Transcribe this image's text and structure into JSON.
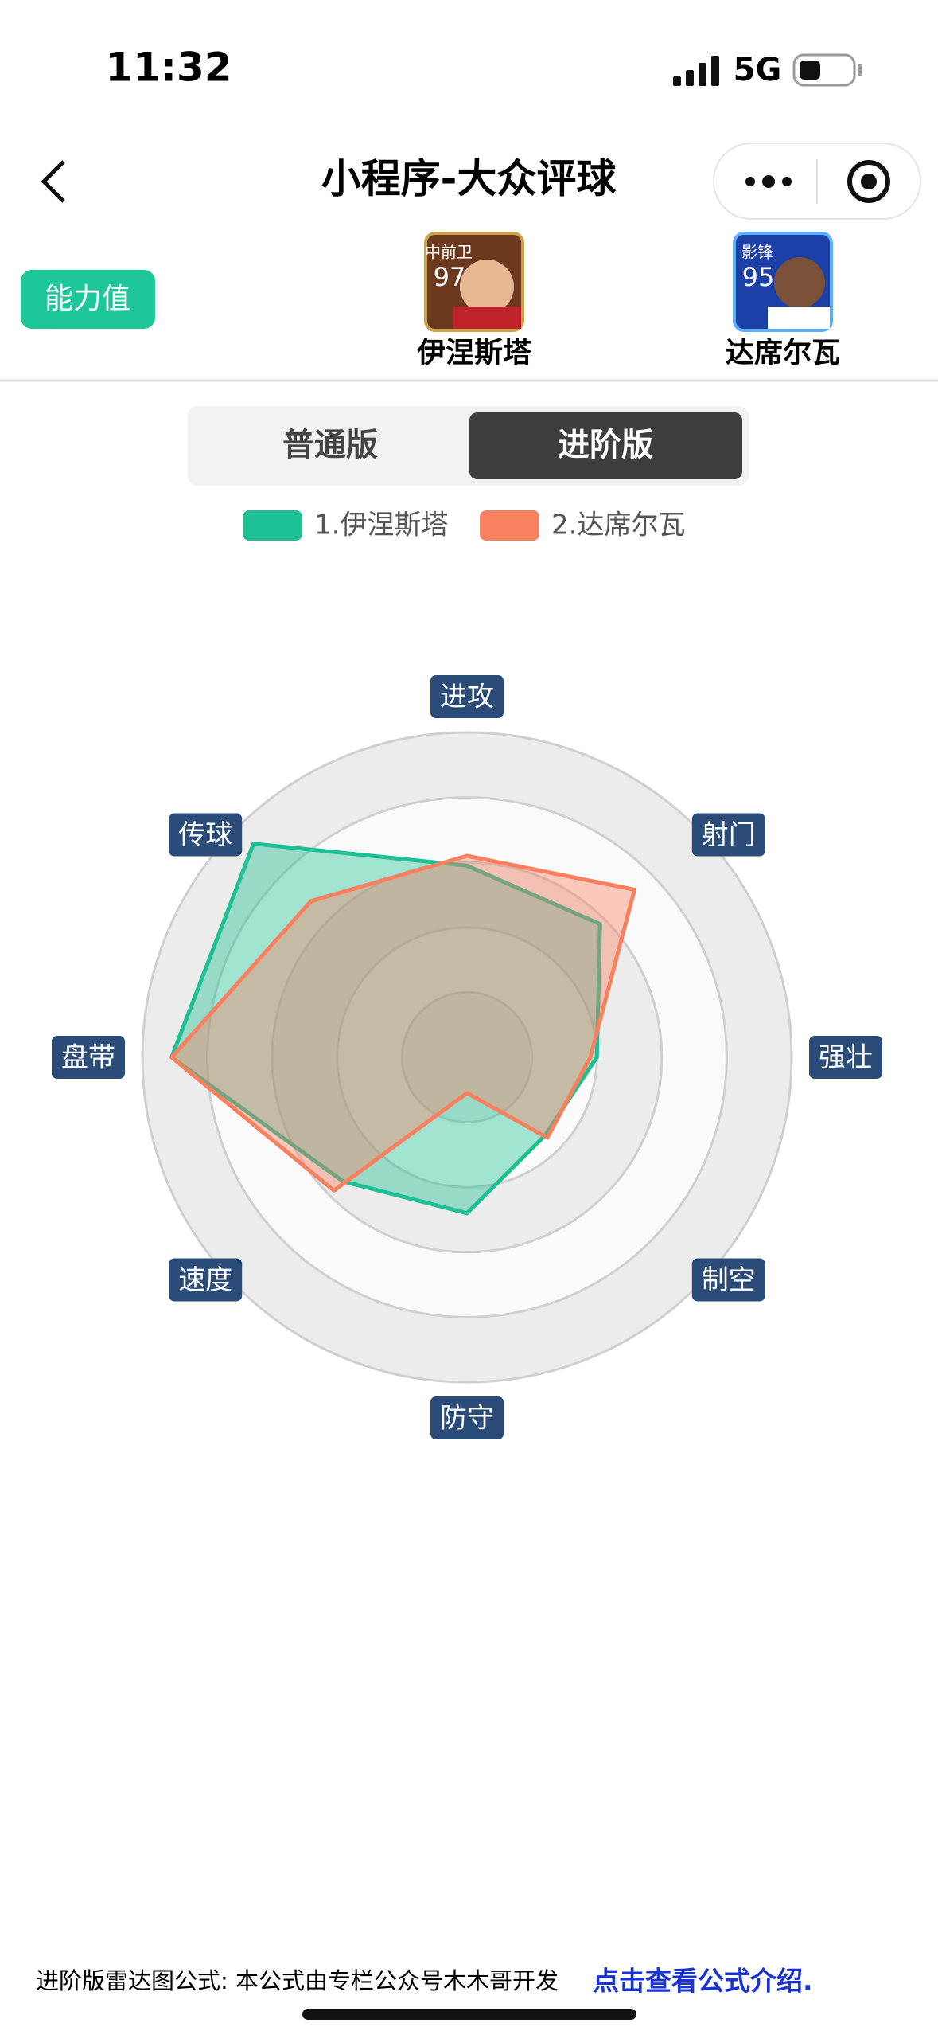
{
  "status_bar": {
    "time": "11:32",
    "network": "5G"
  },
  "nav": {
    "title": "小程序-大众评球"
  },
  "tag": "能力值",
  "players": [
    {
      "position": "中前卫",
      "rating": 97,
      "name": "伊涅斯塔"
    },
    {
      "position": "影锋",
      "rating": 95,
      "name": "达席尔瓦"
    }
  ],
  "tabs": [
    "普通版",
    "进阶版"
  ],
  "chart_data": {
    "type": "radar",
    "categories": [
      "进攻",
      "射门",
      "强壮",
      "制空",
      "防守",
      "速度",
      "盘带",
      "传球"
    ],
    "series": [
      {
        "name": "1.伊涅斯塔",
        "color": "#1dbf94",
        "values": [
          59,
          58,
          40,
          34,
          48,
          54,
          91,
          93
        ]
      },
      {
        "name": "2.达席尔瓦",
        "color": "#f9805f",
        "values": [
          62,
          73,
          38,
          35,
          11,
          58,
          91,
          68
        ]
      }
    ],
    "ylim": [
      0,
      100
    ],
    "yticks": [
      20,
      40,
      60,
      80,
      100
    ],
    "grid": true,
    "legend": "top"
  },
  "footer": {
    "text": "进阶版雷达图公式: 本公式由专栏公众号木木哥开发",
    "link": "点击查看公式介绍."
  }
}
